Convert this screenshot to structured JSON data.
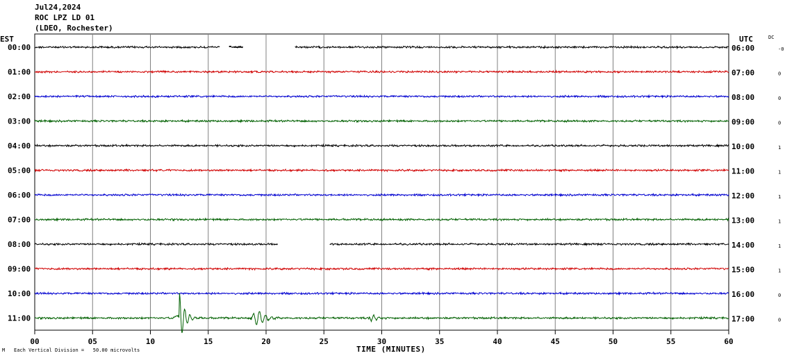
{
  "header": {
    "date": "Jul24,2024",
    "station": "ROC LPZ LD 01",
    "network": "(LDEO, Rochester)"
  },
  "left_timezone": "EST",
  "right_timezone": "UTC",
  "dc_label": "DC",
  "footer": {
    "glyph": "M",
    "scale_text": "Each Vertical Division =   50.00 microvolts"
  },
  "chart_data": {
    "type": "line",
    "subtype": "helicorder",
    "xlabel": "TIME (MINUTES)",
    "xlim": [
      0,
      60
    ],
    "x_ticks": [
      "00",
      "05",
      "10",
      "15",
      "20",
      "25",
      "30",
      "35",
      "40",
      "45",
      "50",
      "55",
      "60"
    ],
    "left_labels": [
      "00:00",
      "01:00",
      "02:00",
      "03:00",
      "04:00",
      "05:00",
      "06:00",
      "07:00",
      "08:00",
      "09:00",
      "10:00",
      "11:00"
    ],
    "right_labels": [
      "06:00",
      "07:00",
      "08:00",
      "09:00",
      "10:00",
      "11:00",
      "12:00",
      "13:00",
      "14:00",
      "15:00",
      "16:00",
      "17:00"
    ],
    "dc_values": [
      "-0",
      "0",
      "0",
      "0",
      "1",
      "1",
      "1",
      "1",
      "1",
      "1",
      "0",
      "0"
    ],
    "trace_colors": [
      "#000000",
      "#d00000",
      "#0000d0",
      "#006000"
    ],
    "grid": true,
    "gaps_minutes": [
      {
        "row": 0,
        "from": 16.0,
        "to": 17.0
      },
      {
        "row": 0,
        "from": 18.0,
        "to": 22.5
      },
      {
        "row": 8,
        "from": 21.0,
        "to": 25.5
      }
    ],
    "events": [
      {
        "row": 11,
        "minute": 12.5,
        "label": ""
      },
      {
        "row": 11,
        "minute": 19.3,
        "label": ""
      },
      {
        "row": 11,
        "minute": 29.2,
        "label": ""
      }
    ]
  }
}
